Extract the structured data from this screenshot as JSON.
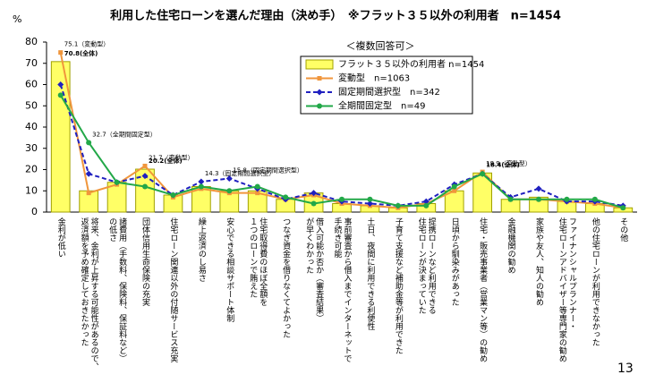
{
  "chart_data": {
    "type": "bar",
    "title": "利用した住宅ローンを選んだ理由（決め手）　※フラット３５以外の利用者　n=1454",
    "y_unit": "%",
    "annotation": "＜複数回答可＞",
    "page_number": "13",
    "categories": [
      [
        "金利が低い"
      ],
      [
        "将来、金利が上昇する可能性があるので、",
        "返済額を予め確定しておきたかった"
      ],
      [
        "諸費用（手数料、保険料、保証料など）",
        "の低さ"
      ],
      [
        "団体信用生命保険の充実"
      ],
      [
        "住宅ローン関連以外の付随サービス充実"
      ],
      [
        "繰上返済のし易さ"
      ],
      [
        "安心できる相談サポート体制"
      ],
      [
        "住宅取得費のほぼ全額を",
        "１つのローンで賄えた"
      ],
      [
        "つなぎ資金を借りなくてよかった"
      ],
      [
        "借入可能か否か（審査結果）",
        "が早くわかった"
      ],
      [
        "事前審査から借入までインターネットで",
        "手続き可能"
      ],
      [
        "土日、夜間に利用できる利便性"
      ],
      [
        "子育て支援など補助金等が利用できた"
      ],
      [
        "提携ローンなど利用できる",
        "住宅ローンが決まっていた"
      ],
      [
        "日頃から馴染みがあった"
      ],
      [
        "住宅・販売事業者（営業マン等）の勧め"
      ],
      [
        "金融機関の勧め"
      ],
      [
        "家族や友人、知人の勧め"
      ],
      [
        "ファイナンシャルプランナー・",
        "住宅ローンアドバイザー等専門家の勧め"
      ],
      [
        "他の住宅ローンが利用できなかった"
      ],
      [
        "その他"
      ]
    ],
    "ylim": [
      0,
      80
    ],
    "yticks": [
      0,
      10,
      20,
      30,
      40,
      50,
      60,
      70,
      80
    ],
    "legend": "upper right",
    "series": [
      {
        "name": "フラット３５以外の利用者 n=1454",
        "type": "bar",
        "color": "#ffff66",
        "values": [
          70.8,
          10,
          14,
          20.2,
          8,
          12,
          10,
          10,
          6,
          9,
          4,
          3,
          2,
          4,
          10,
          18.4,
          6,
          7,
          5,
          4,
          2
        ],
        "value_labels": [
          "70.8(全体)",
          null,
          null,
          "20.2(全体)",
          null,
          null,
          null,
          null,
          null,
          null,
          null,
          null,
          null,
          null,
          null,
          "18.4(全体)",
          null,
          null,
          null,
          null,
          null
        ]
      },
      {
        "name": "変動型　n=1063",
        "type": "line",
        "color": "#f0963c",
        "marker": "square",
        "dash": false,
        "values": [
          75.1,
          9,
          13,
          21.7,
          7,
          11,
          9,
          9,
          6,
          8,
          4,
          3,
          2,
          4,
          10,
          18.9,
          6,
          6,
          5,
          4,
          2
        ],
        "value_labels": [
          "75.1（変動型）",
          null,
          null,
          "21.7（変動型）",
          null,
          null,
          null,
          null,
          null,
          null,
          null,
          null,
          null,
          null,
          null,
          "18.9（変動型）",
          null,
          null,
          null,
          null,
          null
        ]
      },
      {
        "name": "固定期間選択型　n=342",
        "type": "line",
        "color": "#2020c0",
        "marker": "diamond",
        "dash": true,
        "values": [
          60,
          18,
          14,
          17,
          8,
          14.3,
          15.8,
          11,
          6,
          9,
          5,
          4,
          3,
          5,
          13,
          18,
          7,
          11,
          5,
          5,
          3
        ],
        "value_labels": [
          null,
          null,
          null,
          null,
          null,
          "14.3（固定期間選択型）",
          "15.8（固定期間選択型）",
          null,
          null,
          null,
          null,
          null,
          null,
          null,
          null,
          null,
          null,
          null,
          null,
          null,
          null
        ]
      },
      {
        "name": "全期間固定型　n=49",
        "type": "line",
        "color": "#22a848",
        "marker": "circle",
        "dash": false,
        "values": [
          55,
          32.7,
          14,
          12,
          8,
          12,
          10,
          12,
          7,
          4,
          6,
          6,
          3,
          3,
          12,
          18,
          6,
          6,
          6,
          6,
          2
        ],
        "value_labels": [
          null,
          "32.7（全期間固定型）",
          null,
          null,
          null,
          null,
          null,
          null,
          null,
          null,
          null,
          null,
          null,
          null,
          null,
          null,
          null,
          null,
          null,
          null,
          null
        ]
      }
    ]
  }
}
